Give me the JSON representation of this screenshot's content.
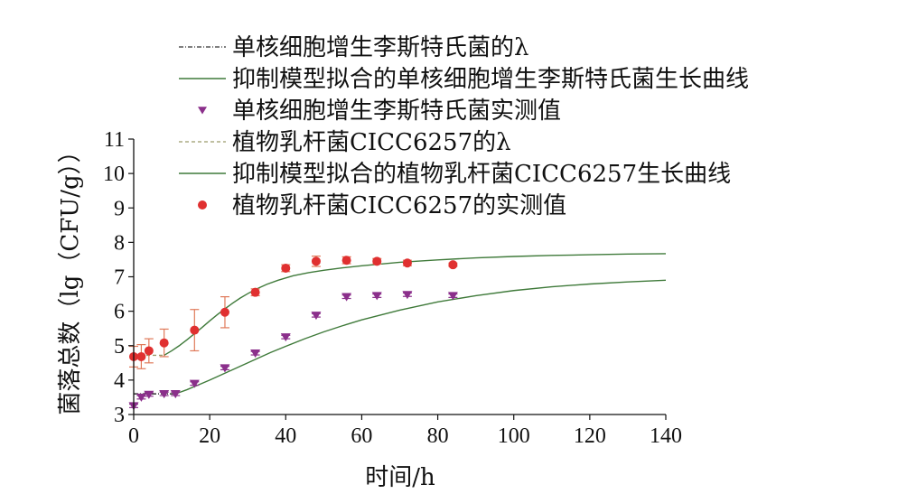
{
  "chart_data": {
    "type": "scatter",
    "xlabel": "时间/h",
    "ylabel": "菌落总数（lg（CFU/g））",
    "xlim": [
      0,
      140
    ],
    "ylim": [
      3,
      11
    ],
    "xticks": [
      0,
      20,
      40,
      60,
      80,
      100,
      120,
      140
    ],
    "yticks": [
      3,
      4,
      5,
      6,
      7,
      8,
      9,
      10,
      11
    ],
    "grid": false,
    "legend_placement": "top",
    "colors": {
      "listeria_points": "#8b2f8b",
      "lactobacillus_points": "#e03030",
      "fit_curves": "#3f7a3a",
      "error_bars": "#e07a5a",
      "lambda_listeria": "#333333",
      "lambda_lactobacillus": "#9a9a6a"
    },
    "legend": [
      {
        "label": "单核细胞增生李斯特氏菌的λ",
        "style": "dashdot",
        "color": "#333333"
      },
      {
        "label": "抑制模型拟合的单核细胞增生李斯特氏菌生长曲线",
        "style": "line",
        "color": "#3f7a3a"
      },
      {
        "label": "单核细胞增生李斯特氏菌实测值",
        "style": "triangle-down",
        "color": "#8b2f8b"
      },
      {
        "label": "植物乳杆菌CICC6257的λ",
        "style": "dashed",
        "color": "#9a9a6a"
      },
      {
        "label": "抑制模型拟合的植物乳杆菌CICC6257生长曲线",
        "style": "line",
        "color": "#3f7a3a"
      },
      {
        "label": "植物乳杆菌CICC6257的实测值",
        "style": "circle",
        "color": "#e03030"
      }
    ],
    "series": [
      {
        "name": "单核细胞增生李斯特氏菌实测值",
        "marker": "triangle-down",
        "x": [
          0,
          2,
          4,
          8,
          11,
          16,
          24,
          32,
          40,
          48,
          56,
          64,
          72,
          84
        ],
        "y": [
          3.25,
          3.5,
          3.58,
          3.6,
          3.6,
          3.9,
          4.35,
          4.78,
          5.25,
          5.88,
          6.42,
          6.45,
          6.48,
          6.45
        ],
        "err": [
          0.05,
          0.05,
          0.05,
          0.05,
          0.05,
          0.05,
          0.05,
          0.05,
          0.05,
          0.05,
          0.05,
          0.05,
          0.05,
          0.05
        ]
      },
      {
        "name": "植物乳杆菌CICC6257的实测值",
        "marker": "circle",
        "x": [
          0,
          2,
          4,
          8,
          16,
          24,
          32,
          40,
          48,
          56,
          64,
          72,
          84
        ],
        "y": [
          4.68,
          4.68,
          4.85,
          5.08,
          5.45,
          5.97,
          6.55,
          7.25,
          7.45,
          7.48,
          7.45,
          7.4,
          7.35
        ],
        "err": [
          0.3,
          0.35,
          0.35,
          0.4,
          0.6,
          0.45,
          0.1,
          0.1,
          0.15,
          0.1,
          0.08,
          0.08,
          0.05
        ]
      },
      {
        "name": "抑制模型拟合的植物乳杆菌CICC6257生长曲线",
        "style": "line",
        "x": [
          8,
          10,
          12,
          14,
          16,
          18,
          20,
          22,
          24,
          26,
          28,
          30,
          32,
          35,
          38,
          42,
          46,
          50,
          55,
          60,
          70,
          80,
          90,
          100,
          110,
          120,
          130,
          140
        ],
        "y": [
          4.72,
          4.85,
          5.0,
          5.17,
          5.35,
          5.53,
          5.72,
          5.9,
          6.07,
          6.23,
          6.38,
          6.51,
          6.63,
          6.78,
          6.9,
          7.03,
          7.12,
          7.19,
          7.26,
          7.32,
          7.42,
          7.49,
          7.55,
          7.59,
          7.62,
          7.64,
          7.66,
          7.67
        ]
      },
      {
        "name": "抑制模型拟合的单核细胞增生李斯特氏菌生长曲线",
        "style": "line",
        "x": [
          11,
          14,
          17,
          20,
          24,
          28,
          32,
          36,
          40,
          45,
          50,
          55,
          60,
          70,
          80,
          90,
          100,
          110,
          120,
          130,
          140
        ],
        "y": [
          3.6,
          3.72,
          3.86,
          4.0,
          4.2,
          4.4,
          4.6,
          4.8,
          4.98,
          5.2,
          5.4,
          5.58,
          5.75,
          6.03,
          6.27,
          6.45,
          6.6,
          6.71,
          6.79,
          6.85,
          6.9
        ]
      },
      {
        "name": "植物乳杆菌CICC6257的λ",
        "style": "dashed",
        "x": [
          0,
          8
        ],
        "y": [
          4.72,
          4.72
        ]
      },
      {
        "name": "单核细胞增生李斯特氏菌的λ",
        "style": "dashdot",
        "x": [
          0,
          11
        ],
        "y": [
          3.6,
          3.6
        ]
      }
    ]
  }
}
